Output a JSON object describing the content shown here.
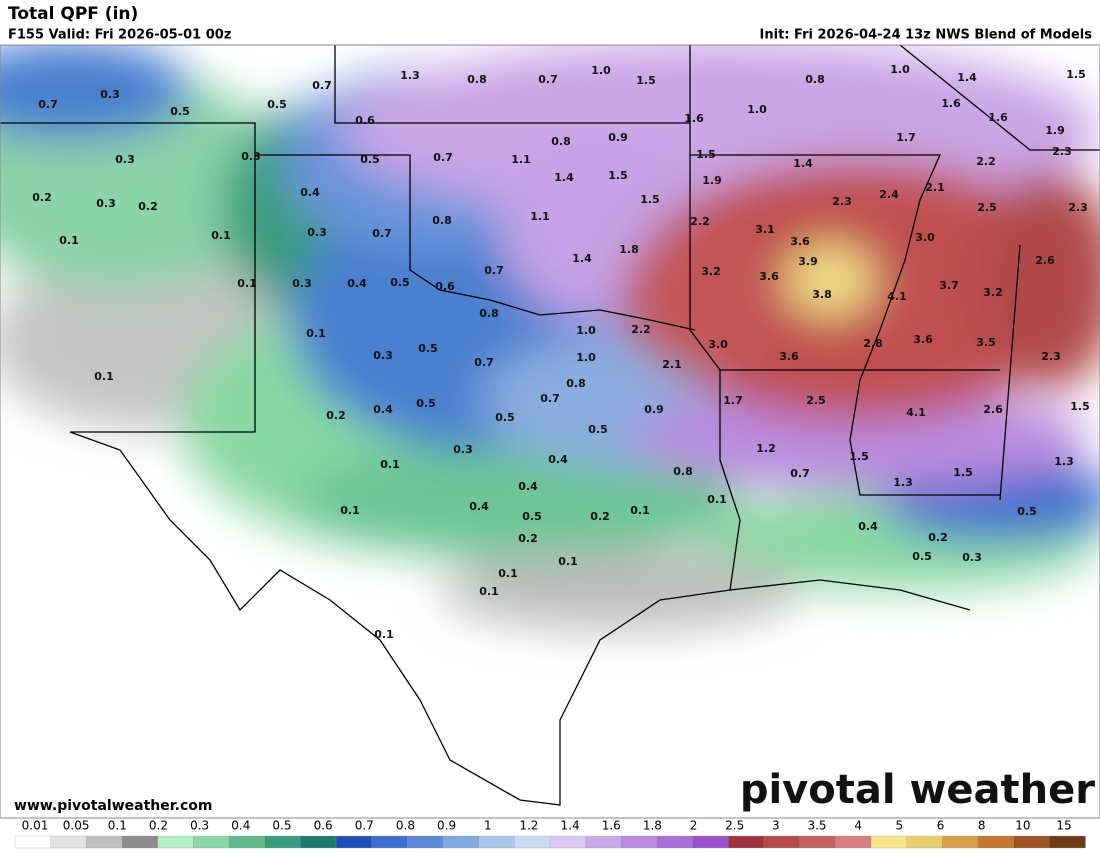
{
  "header": {
    "title": "Total QPF (in)",
    "valid": "F155 Valid: Fri 2026-05-01 00z",
    "init": "Init: Fri 2026-04-24 13z NWS Blend of Models"
  },
  "footer": {
    "website": "www.pivotalweather.com",
    "logo": "pivotal weather"
  },
  "map_labels": [
    "0.7",
    "0.3",
    "0.5",
    "0.5",
    "0.7",
    "1.3",
    "0.8",
    "0.7",
    "1.0",
    "1.5",
    "0.8",
    "1.0",
    "1.4",
    "1.5",
    "0.6",
    "1.6",
    "1.0",
    "1.6",
    "1.6",
    "1.9",
    "0.3",
    "0.3",
    "0.5",
    "0.7",
    "1.1",
    "0.8",
    "0.9",
    "1.5",
    "1.4",
    "1.7",
    "2.2",
    "2.3",
    "0.2",
    "0.3",
    "0.2",
    "0.4",
    "1.4",
    "1.5",
    "1.9",
    "2.3",
    "2.4",
    "2.1",
    "2.5",
    "2.3",
    "0.1",
    "0.1",
    "0.3",
    "0.7",
    "0.8",
    "1.1",
    "1.5",
    "2.2",
    "3.1",
    "3.6",
    "3.0",
    "0.1",
    "0.3",
    "0.4",
    "0.5",
    "0.6",
    "0.7",
    "1.4",
    "1.8",
    "3.2",
    "3.6",
    "3.9",
    "3.8",
    "4.1",
    "3.7",
    "3.2",
    "2.6",
    "0.8",
    "1.0",
    "2.2",
    "3.0",
    "3.6",
    "2.8",
    "3.6",
    "3.5",
    "2.3",
    "0.1",
    "0.3",
    "0.5",
    "0.7",
    "1.0",
    "2.1",
    "0.8",
    "0.1",
    "0.2",
    "0.4",
    "0.5",
    "0.7",
    "0.5",
    "0.9",
    "1.7",
    "2.5",
    "4.1",
    "2.6",
    "1.5",
    "0.3",
    "0.5",
    "0.4",
    "1.2",
    "1.5",
    "1.3",
    "0.1",
    "0.8",
    "0.7",
    "1.5",
    "1.3",
    "0.4",
    "0.1",
    "0.4",
    "0.5",
    "0.2",
    "0.1",
    "0.1",
    "0.5",
    "0.2",
    "0.4",
    "0.2",
    "0.3",
    "0.5",
    "0.1",
    "0.1",
    "0.1",
    "0.1"
  ],
  "colorbar": {
    "labels": [
      "0.01",
      "0.05",
      "0.1",
      "0.2",
      "0.3",
      "0.4",
      "0.5",
      "0.6",
      "0.7",
      "0.8",
      "0.9",
      "1",
      "1.2",
      "1.4",
      "1.6",
      "1.8",
      "2",
      "2.5",
      "3",
      "3.5",
      "4",
      "5",
      "6",
      "8",
      "10",
      "15"
    ],
    "colors": [
      "#ffffff",
      "#e2e2e2",
      "#c0c0c0",
      "#8c8c8c",
      "#b2efc3",
      "#8ad8a4",
      "#5fbd8d",
      "#3a9c7d",
      "#1b7b70",
      "#1f4fb5",
      "#3c6dcf",
      "#5d8ad8",
      "#83a9e3",
      "#aac7eb",
      "#c8dcf1",
      "#dcc8f0",
      "#cba9e8",
      "#bb8be0",
      "#ab6ed7",
      "#9a50ce",
      "#a0343e",
      "#b44a4a",
      "#c66262",
      "#d77e7e",
      "#f6e68c",
      "#e9cd6c",
      "#d8a04a",
      "#c3772f",
      "#9c5522",
      "#6f3a17"
    ]
  }
}
